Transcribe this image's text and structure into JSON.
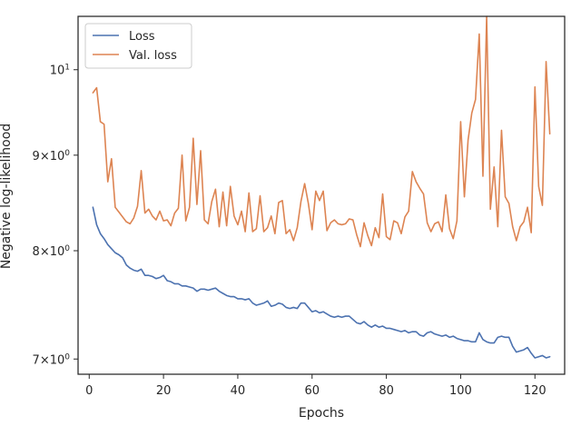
{
  "chart_data": {
    "type": "line",
    "title": "",
    "xlabel": "Epochs",
    "ylabel": "Negative log-likelihood",
    "yscale": "log",
    "xlim": [
      -3,
      128
    ],
    "ylim": [
      6.87,
      10.68
    ],
    "grid": false,
    "legend_placement": "top-left",
    "x_ticks": [
      0,
      20,
      40,
      60,
      80,
      100,
      120
    ],
    "x_tick_labels": [
      "0",
      "20",
      "40",
      "60",
      "80",
      "100",
      "120"
    ],
    "y_ticks": [
      7,
      8,
      9,
      10
    ],
    "y_tick_labels": [
      {
        "base": "7",
        "sep": "×",
        "pow": "10",
        "exp": "0"
      },
      {
        "base": "8",
        "sep": "×",
        "pow": "10",
        "exp": "0"
      },
      {
        "base": "9",
        "sep": "×",
        "pow": "10",
        "exp": "0"
      },
      {
        "base": "",
        "sep": "",
        "pow": "10",
        "exp": "1"
      }
    ],
    "x": [
      1,
      2,
      3,
      4,
      5,
      6,
      7,
      8,
      9,
      10,
      11,
      12,
      13,
      14,
      15,
      16,
      17,
      18,
      19,
      20,
      21,
      22,
      23,
      24,
      25,
      26,
      27,
      28,
      29,
      30,
      31,
      32,
      33,
      34,
      35,
      36,
      37,
      38,
      39,
      40,
      41,
      42,
      43,
      44,
      45,
      46,
      47,
      48,
      49,
      50,
      51,
      52,
      53,
      54,
      55,
      56,
      57,
      58,
      59,
      60,
      61,
      62,
      63,
      64,
      65,
      66,
      67,
      68,
      69,
      70,
      71,
      72,
      73,
      74,
      75,
      76,
      77,
      78,
      79,
      80,
      81,
      82,
      83,
      84,
      85,
      86,
      87,
      88,
      89,
      90,
      91,
      92,
      93,
      94,
      95,
      96,
      97,
      98,
      99,
      100,
      101,
      102,
      103,
      104,
      105,
      106,
      107,
      108,
      109,
      110,
      111,
      112,
      113,
      114,
      115,
      116,
      117,
      118,
      119,
      120,
      121,
      122,
      123,
      124
    ],
    "series": [
      {
        "name": "Loss",
        "color": "#4c72b0",
        "values": [
          8.44,
          8.26,
          8.17,
          8.12,
          8.06,
          8.02,
          7.98,
          7.96,
          7.93,
          7.86,
          7.83,
          7.81,
          7.8,
          7.82,
          7.76,
          7.76,
          7.75,
          7.73,
          7.74,
          7.76,
          7.71,
          7.7,
          7.68,
          7.68,
          7.66,
          7.66,
          7.65,
          7.64,
          7.61,
          7.63,
          7.63,
          7.62,
          7.63,
          7.64,
          7.61,
          7.59,
          7.57,
          7.56,
          7.56,
          7.54,
          7.54,
          7.53,
          7.54,
          7.5,
          7.48,
          7.49,
          7.5,
          7.52,
          7.47,
          7.48,
          7.5,
          7.49,
          7.46,
          7.45,
          7.46,
          7.45,
          7.5,
          7.5,
          7.46,
          7.42,
          7.43,
          7.41,
          7.42,
          7.4,
          7.38,
          7.37,
          7.38,
          7.37,
          7.38,
          7.38,
          7.35,
          7.32,
          7.31,
          7.33,
          7.3,
          7.28,
          7.3,
          7.28,
          7.29,
          7.27,
          7.27,
          7.26,
          7.25,
          7.24,
          7.25,
          7.23,
          7.24,
          7.24,
          7.21,
          7.2,
          7.23,
          7.24,
          7.22,
          7.21,
          7.2,
          7.21,
          7.19,
          7.2,
          7.18,
          7.17,
          7.16,
          7.16,
          7.15,
          7.15,
          7.23,
          7.17,
          7.15,
          7.14,
          7.14,
          7.19,
          7.2,
          7.19,
          7.19,
          7.11,
          7.06,
          7.07,
          7.08,
          7.1,
          7.05,
          7.01,
          7.02,
          7.03,
          7.01,
          7.02
        ]
      },
      {
        "name": "Val. loss",
        "color": "#dd8452",
        "values": [
          9.72,
          9.78,
          9.38,
          9.35,
          8.71,
          8.96,
          8.44,
          8.39,
          8.34,
          8.29,
          8.27,
          8.33,
          8.45,
          8.83,
          8.38,
          8.42,
          8.35,
          8.31,
          8.4,
          8.3,
          8.31,
          8.25,
          8.38,
          8.43,
          9.0,
          8.3,
          8.44,
          9.19,
          8.47,
          9.05,
          8.31,
          8.27,
          8.5,
          8.63,
          8.24,
          8.6,
          8.25,
          8.66,
          8.35,
          8.26,
          8.4,
          8.19,
          8.59,
          8.19,
          8.22,
          8.56,
          8.19,
          8.23,
          8.35,
          8.17,
          8.49,
          8.51,
          8.17,
          8.21,
          8.1,
          8.23,
          8.5,
          8.69,
          8.48,
          8.21,
          8.61,
          8.51,
          8.61,
          8.2,
          8.28,
          8.31,
          8.27,
          8.26,
          8.27,
          8.32,
          8.31,
          8.16,
          8.04,
          8.28,
          8.15,
          8.05,
          8.23,
          8.13,
          8.58,
          8.14,
          8.11,
          8.3,
          8.28,
          8.17,
          8.34,
          8.4,
          8.82,
          8.71,
          8.64,
          8.58,
          8.28,
          8.19,
          8.27,
          8.29,
          8.19,
          8.57,
          8.22,
          8.12,
          8.3,
          9.38,
          8.55,
          9.17,
          9.48,
          9.64,
          10.45,
          8.77,
          10.68,
          8.42,
          8.87,
          8.24,
          9.28,
          8.55,
          8.48,
          8.24,
          8.1,
          8.24,
          8.29,
          8.44,
          8.18,
          9.79,
          8.66,
          8.46,
          10.1,
          9.24
        ]
      }
    ]
  }
}
